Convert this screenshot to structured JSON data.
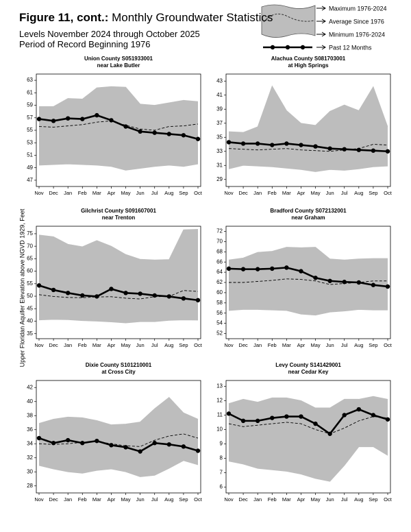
{
  "header": {
    "figure": "Figure 11, cont.:",
    "title": "Monthly Groundwater Statistics",
    "subtitle1": "Levels November 2024 through October 2025",
    "subtitle2": "Period of Record Beginning 1976"
  },
  "legend": [
    "Maximum 1976-2024",
    "Average Since 1976",
    "Minimum 1976-2024",
    "Past 12 Months"
  ],
  "y_axis_label": "Upper Floridan Aquifer Elevation above NGVD 1929, Feet",
  "chart_data": [
    {
      "type": "line",
      "title": "Union County S051933001",
      "subtitle": "near Lake Butler",
      "categories": [
        "Nov",
        "Dec",
        "Jan",
        "Feb",
        "Mar",
        "Apr",
        "May",
        "Jun",
        "Jul",
        "Aug",
        "Sep",
        "Oct"
      ],
      "ylim": [
        46,
        64
      ],
      "yticks": [
        47,
        49,
        51,
        53,
        55,
        57,
        59,
        61,
        63
      ],
      "series": [
        {
          "style": "band",
          "color": "#bdbdbd",
          "values": [
            58.8,
            58.8,
            60.1,
            60.0,
            61.8,
            62.0,
            61.9,
            59.2,
            59.0,
            59.4,
            59.8,
            59.6
          ]
        },
        {
          "style": "dashed",
          "color": "#000000",
          "values": [
            55.6,
            55.5,
            55.7,
            55.9,
            56.3,
            56.5,
            55.8,
            55.2,
            55.0,
            55.6,
            55.7,
            56.0
          ]
        },
        {
          "style": "band",
          "color": "#bdbdbd",
          "values": [
            49.4,
            49.5,
            49.6,
            49.5,
            49.4,
            49.2,
            48.6,
            48.9,
            49.2,
            49.4,
            49.2,
            49.6
          ]
        },
        {
          "style": "solid",
          "color": "#000000",
          "values": [
            56.8,
            56.5,
            56.9,
            56.8,
            57.4,
            56.6,
            55.6,
            54.8,
            54.6,
            54.4,
            54.2,
            53.6
          ]
        }
      ]
    },
    {
      "type": "line",
      "title": "Alachua County S081703001",
      "subtitle": "at High Springs",
      "categories": [
        "Nov",
        "Dec",
        "Jan",
        "Feb",
        "Mar",
        "Apr",
        "May",
        "Jun",
        "Jul",
        "Aug",
        "Sep",
        "Oct"
      ],
      "ylim": [
        28,
        44
      ],
      "yticks": [
        29,
        31,
        33,
        35,
        37,
        39,
        41,
        43
      ],
      "series": [
        {
          "style": "band",
          "color": "#bdbdbd",
          "values": [
            35.8,
            35.7,
            36.5,
            42.3,
            38.8,
            37.0,
            36.7,
            38.7,
            39.6,
            38.8,
            42.2,
            36.5
          ]
        },
        {
          "style": "dashed",
          "color": "#000000",
          "values": [
            33.4,
            33.3,
            33.2,
            33.3,
            33.4,
            33.2,
            33.1,
            33.0,
            33.2,
            33.4,
            34.0,
            33.9
          ]
        },
        {
          "style": "band",
          "color": "#bdbdbd",
          "values": [
            30.5,
            31.0,
            30.9,
            30.8,
            30.6,
            30.4,
            30.1,
            30.4,
            30.3,
            30.5,
            30.8,
            30.9
          ]
        },
        {
          "style": "solid",
          "color": "#000000",
          "values": [
            34.3,
            34.1,
            34.1,
            33.9,
            34.1,
            33.9,
            33.7,
            33.4,
            33.3,
            33.2,
            33.1,
            33.0
          ]
        }
      ]
    },
    {
      "type": "line",
      "title": "Gilchrist County S091607001",
      "subtitle": "near Trenton",
      "categories": [
        "Nov",
        "Dec",
        "Jan",
        "Feb",
        "Mar",
        "Apr",
        "May",
        "Jun",
        "Jul",
        "Aug",
        "Sep",
        "Oct"
      ],
      "ylim": [
        33,
        78
      ],
      "yticks": [
        35,
        40,
        45,
        50,
        55,
        60,
        65,
        70,
        75
      ],
      "series": [
        {
          "style": "band",
          "color": "#bdbdbd",
          "values": [
            74.5,
            73.8,
            70.8,
            69.8,
            72.3,
            70.0,
            66.7,
            64.8,
            64.5,
            64.7,
            76.6,
            76.8
          ]
        },
        {
          "style": "dashed",
          "color": "#000000",
          "values": [
            50.6,
            49.9,
            49.5,
            49.4,
            49.7,
            49.8,
            49.2,
            48.9,
            49.8,
            49.9,
            52.3,
            51.9
          ]
        },
        {
          "style": "band",
          "color": "#bdbdbd",
          "values": [
            40.5,
            40.7,
            40.6,
            40.2,
            40.0,
            39.7,
            39.3,
            39.8,
            39.8,
            40.3,
            40.5,
            40.4
          ]
        },
        {
          "style": "solid",
          "color": "#000000",
          "values": [
            54.3,
            52.5,
            51.3,
            50.3,
            49.9,
            52.9,
            51.3,
            51.0,
            50.3,
            49.9,
            49.1,
            48.4
          ]
        }
      ]
    },
    {
      "type": "line",
      "title": "Bradford County S072132001",
      "subtitle": "near Graham",
      "categories": [
        "Nov",
        "Dec",
        "Jan",
        "Feb",
        "Mar",
        "Apr",
        "May",
        "Jun",
        "Jul",
        "Aug",
        "Sep",
        "Oct"
      ],
      "ylim": [
        51,
        73
      ],
      "yticks": [
        52,
        54,
        56,
        58,
        60,
        62,
        64,
        66,
        68,
        70,
        72
      ],
      "series": [
        {
          "style": "band",
          "color": "#bdbdbd",
          "values": [
            66.4,
            66.8,
            67.9,
            68.1,
            68.9,
            68.8,
            68.9,
            66.6,
            66.4,
            66.6,
            66.7,
            66.7
          ]
        },
        {
          "style": "dashed",
          "color": "#000000",
          "values": [
            62.0,
            62.0,
            62.2,
            62.4,
            62.7,
            62.6,
            62.3,
            61.6,
            61.8,
            62.0,
            62.3,
            62.3
          ]
        },
        {
          "style": "band",
          "color": "#bdbdbd",
          "values": [
            56.5,
            56.7,
            56.7,
            56.6,
            56.5,
            55.8,
            55.6,
            56.2,
            56.4,
            56.7,
            56.6,
            56.6
          ]
        },
        {
          "style": "solid",
          "color": "#000000",
          "values": [
            64.7,
            64.6,
            64.6,
            64.7,
            64.9,
            64.2,
            62.9,
            62.3,
            62.1,
            62.0,
            61.5,
            61.2
          ]
        }
      ]
    },
    {
      "type": "line",
      "title": "Dixie County S101210001",
      "subtitle": "at Cross City",
      "categories": [
        "Nov",
        "Dec",
        "Jan",
        "Feb",
        "Mar",
        "Apr",
        "May",
        "Jun",
        "Jul",
        "Aug",
        "Sep",
        "Oct"
      ],
      "ylim": [
        27,
        43
      ],
      "yticks": [
        28,
        30,
        32,
        34,
        36,
        38,
        40,
        42
      ],
      "series": [
        {
          "style": "band",
          "color": "#bdbdbd",
          "values": [
            36.9,
            37.5,
            37.8,
            37.7,
            37.3,
            36.7,
            36.8,
            37.1,
            39.0,
            40.6,
            38.4,
            37.5
          ]
        },
        {
          "style": "dashed",
          "color": "#000000",
          "values": [
            34.0,
            33.9,
            34.0,
            34.2,
            34.3,
            34.0,
            33.7,
            33.6,
            34.5,
            35.1,
            35.4,
            34.8
          ]
        },
        {
          "style": "band",
          "color": "#bdbdbd",
          "values": [
            30.9,
            30.4,
            30.0,
            29.8,
            30.2,
            30.4,
            30.0,
            29.3,
            29.5,
            30.5,
            31.6,
            31.0
          ]
        },
        {
          "style": "solid",
          "color": "#000000",
          "values": [
            34.8,
            34.1,
            34.5,
            34.1,
            34.4,
            33.8,
            33.5,
            32.9,
            34.1,
            33.9,
            33.6,
            33.0
          ]
        }
      ]
    },
    {
      "type": "line",
      "title": "Levy County S141429001",
      "subtitle": "near Cedar Key",
      "categories": [
        "Nov",
        "Dec",
        "Jan",
        "Feb",
        "Mar",
        "Apr",
        "May",
        "Jun",
        "Jul",
        "Aug",
        "Sep",
        "Oct"
      ],
      "ylim": [
        5.6,
        13.4
      ],
      "yticks": [
        6,
        7,
        8,
        9,
        10,
        11,
        12,
        13
      ],
      "series": [
        {
          "style": "band",
          "color": "#bdbdbd",
          "values": [
            11.8,
            12.1,
            11.9,
            12.2,
            12.2,
            12.0,
            11.5,
            11.5,
            12.1,
            12.1,
            12.3,
            12.1
          ]
        },
        {
          "style": "dashed",
          "color": "#000000",
          "values": [
            10.4,
            10.2,
            10.3,
            10.4,
            10.5,
            10.4,
            10.0,
            9.7,
            10.1,
            10.6,
            10.9,
            10.8
          ]
        },
        {
          "style": "band",
          "color": "#bdbdbd",
          "values": [
            7.8,
            7.6,
            7.3,
            7.2,
            7.1,
            6.9,
            6.6,
            6.4,
            7.5,
            8.8,
            8.8,
            8.2
          ]
        },
        {
          "style": "solid",
          "color": "#000000",
          "values": [
            11.1,
            10.6,
            10.6,
            10.8,
            10.9,
            10.9,
            10.4,
            9.7,
            11.0,
            11.4,
            11.0,
            10.7
          ]
        }
      ]
    }
  ]
}
